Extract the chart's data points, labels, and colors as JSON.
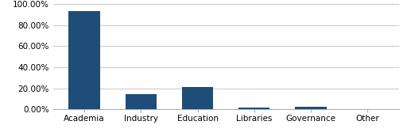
{
  "categories": [
    "Academia",
    "Industry",
    "Education",
    "Libraries",
    "Governance",
    "Other"
  ],
  "values": [
    0.934,
    0.145,
    0.209,
    0.017,
    0.024,
    0.001
  ],
  "bar_color": "#1e4d78",
  "ylim": [
    0,
    1.0
  ],
  "yticks": [
    0.0,
    0.2,
    0.4,
    0.6,
    0.8,
    1.0
  ],
  "ytick_labels": [
    "0.00%",
    "20.00%",
    "40.00%",
    "60.00%",
    "80.00%",
    "100.00%"
  ],
  "background_color": "#ffffff",
  "grid_color": "#c8c8c8",
  "bar_width": 0.55,
  "tick_fontsize": 7.5,
  "xlabel_fontsize": 7.5
}
